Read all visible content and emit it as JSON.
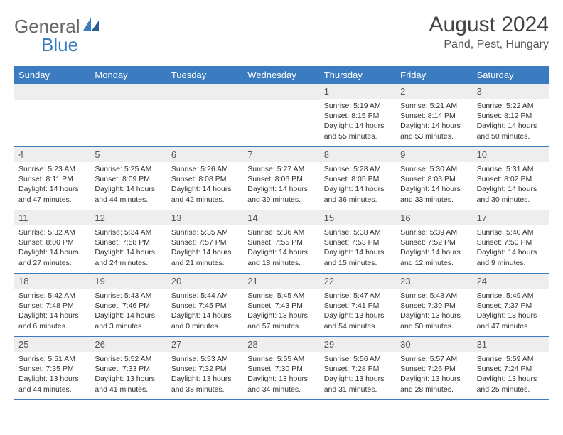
{
  "logo": {
    "text1": "General",
    "text2": "Blue"
  },
  "title": "August 2024",
  "location": "Pand, Pest, Hungary",
  "colors": {
    "header_bg": "#3b7bbf",
    "header_text": "#ffffff",
    "daynum_bg": "#eeeeee",
    "border": "#3b7bbf"
  },
  "weekdays": [
    "Sunday",
    "Monday",
    "Tuesday",
    "Wednesday",
    "Thursday",
    "Friday",
    "Saturday"
  ],
  "weeks": [
    [
      null,
      null,
      null,
      null,
      {
        "n": "1",
        "sr": "Sunrise: 5:19 AM",
        "ss": "Sunset: 8:15 PM",
        "dl": "Daylight: 14 hours and 55 minutes."
      },
      {
        "n": "2",
        "sr": "Sunrise: 5:21 AM",
        "ss": "Sunset: 8:14 PM",
        "dl": "Daylight: 14 hours and 53 minutes."
      },
      {
        "n": "3",
        "sr": "Sunrise: 5:22 AM",
        "ss": "Sunset: 8:12 PM",
        "dl": "Daylight: 14 hours and 50 minutes."
      }
    ],
    [
      {
        "n": "4",
        "sr": "Sunrise: 5:23 AM",
        "ss": "Sunset: 8:11 PM",
        "dl": "Daylight: 14 hours and 47 minutes."
      },
      {
        "n": "5",
        "sr": "Sunrise: 5:25 AM",
        "ss": "Sunset: 8:09 PM",
        "dl": "Daylight: 14 hours and 44 minutes."
      },
      {
        "n": "6",
        "sr": "Sunrise: 5:26 AM",
        "ss": "Sunset: 8:08 PM",
        "dl": "Daylight: 14 hours and 42 minutes."
      },
      {
        "n": "7",
        "sr": "Sunrise: 5:27 AM",
        "ss": "Sunset: 8:06 PM",
        "dl": "Daylight: 14 hours and 39 minutes."
      },
      {
        "n": "8",
        "sr": "Sunrise: 5:28 AM",
        "ss": "Sunset: 8:05 PM",
        "dl": "Daylight: 14 hours and 36 minutes."
      },
      {
        "n": "9",
        "sr": "Sunrise: 5:30 AM",
        "ss": "Sunset: 8:03 PM",
        "dl": "Daylight: 14 hours and 33 minutes."
      },
      {
        "n": "10",
        "sr": "Sunrise: 5:31 AM",
        "ss": "Sunset: 8:02 PM",
        "dl": "Daylight: 14 hours and 30 minutes."
      }
    ],
    [
      {
        "n": "11",
        "sr": "Sunrise: 5:32 AM",
        "ss": "Sunset: 8:00 PM",
        "dl": "Daylight: 14 hours and 27 minutes."
      },
      {
        "n": "12",
        "sr": "Sunrise: 5:34 AM",
        "ss": "Sunset: 7:58 PM",
        "dl": "Daylight: 14 hours and 24 minutes."
      },
      {
        "n": "13",
        "sr": "Sunrise: 5:35 AM",
        "ss": "Sunset: 7:57 PM",
        "dl": "Daylight: 14 hours and 21 minutes."
      },
      {
        "n": "14",
        "sr": "Sunrise: 5:36 AM",
        "ss": "Sunset: 7:55 PM",
        "dl": "Daylight: 14 hours and 18 minutes."
      },
      {
        "n": "15",
        "sr": "Sunrise: 5:38 AM",
        "ss": "Sunset: 7:53 PM",
        "dl": "Daylight: 14 hours and 15 minutes."
      },
      {
        "n": "16",
        "sr": "Sunrise: 5:39 AM",
        "ss": "Sunset: 7:52 PM",
        "dl": "Daylight: 14 hours and 12 minutes."
      },
      {
        "n": "17",
        "sr": "Sunrise: 5:40 AM",
        "ss": "Sunset: 7:50 PM",
        "dl": "Daylight: 14 hours and 9 minutes."
      }
    ],
    [
      {
        "n": "18",
        "sr": "Sunrise: 5:42 AM",
        "ss": "Sunset: 7:48 PM",
        "dl": "Daylight: 14 hours and 6 minutes."
      },
      {
        "n": "19",
        "sr": "Sunrise: 5:43 AM",
        "ss": "Sunset: 7:46 PM",
        "dl": "Daylight: 14 hours and 3 minutes."
      },
      {
        "n": "20",
        "sr": "Sunrise: 5:44 AM",
        "ss": "Sunset: 7:45 PM",
        "dl": "Daylight: 14 hours and 0 minutes."
      },
      {
        "n": "21",
        "sr": "Sunrise: 5:45 AM",
        "ss": "Sunset: 7:43 PM",
        "dl": "Daylight: 13 hours and 57 minutes."
      },
      {
        "n": "22",
        "sr": "Sunrise: 5:47 AM",
        "ss": "Sunset: 7:41 PM",
        "dl": "Daylight: 13 hours and 54 minutes."
      },
      {
        "n": "23",
        "sr": "Sunrise: 5:48 AM",
        "ss": "Sunset: 7:39 PM",
        "dl": "Daylight: 13 hours and 50 minutes."
      },
      {
        "n": "24",
        "sr": "Sunrise: 5:49 AM",
        "ss": "Sunset: 7:37 PM",
        "dl": "Daylight: 13 hours and 47 minutes."
      }
    ],
    [
      {
        "n": "25",
        "sr": "Sunrise: 5:51 AM",
        "ss": "Sunset: 7:35 PM",
        "dl": "Daylight: 13 hours and 44 minutes."
      },
      {
        "n": "26",
        "sr": "Sunrise: 5:52 AM",
        "ss": "Sunset: 7:33 PM",
        "dl": "Daylight: 13 hours and 41 minutes."
      },
      {
        "n": "27",
        "sr": "Sunrise: 5:53 AM",
        "ss": "Sunset: 7:32 PM",
        "dl": "Daylight: 13 hours and 38 minutes."
      },
      {
        "n": "28",
        "sr": "Sunrise: 5:55 AM",
        "ss": "Sunset: 7:30 PM",
        "dl": "Daylight: 13 hours and 34 minutes."
      },
      {
        "n": "29",
        "sr": "Sunrise: 5:56 AM",
        "ss": "Sunset: 7:28 PM",
        "dl": "Daylight: 13 hours and 31 minutes."
      },
      {
        "n": "30",
        "sr": "Sunrise: 5:57 AM",
        "ss": "Sunset: 7:26 PM",
        "dl": "Daylight: 13 hours and 28 minutes."
      },
      {
        "n": "31",
        "sr": "Sunrise: 5:59 AM",
        "ss": "Sunset: 7:24 PM",
        "dl": "Daylight: 13 hours and 25 minutes."
      }
    ]
  ]
}
